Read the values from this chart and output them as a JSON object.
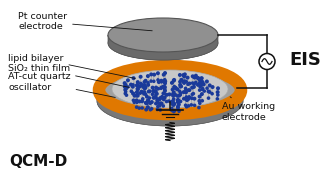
{
  "bg_color": "#ffffff",
  "labels": {
    "pt_electrode": "Pt counter\nelectrode",
    "lipid_bilayer": "lipid bilayer",
    "sio2": "SiO₂ thin film",
    "at_cut": "AT-cut quartz\noscillator",
    "au_electrode": "Au working\nelectrode",
    "qcmd": "QCM-D",
    "eis": "EIS"
  },
  "colors": {
    "pt_disk_top": "#909090",
    "pt_disk_side": "#6a6a6a",
    "pt_disk_edge": "#555555",
    "quartz_top": "#a0a0a0",
    "quartz_side": "#787878",
    "quartz_edge": "#606060",
    "au_ring": "#E07800",
    "sio2_top": "#c8c8c8",
    "sio2_edge": "#aaaaaa",
    "lipid_blue": "#1a3a9a",
    "lipid_tail": "#999999",
    "wire": "#111111",
    "text": "#111111"
  },
  "figsize": [
    3.28,
    1.8
  ],
  "dpi": 100
}
